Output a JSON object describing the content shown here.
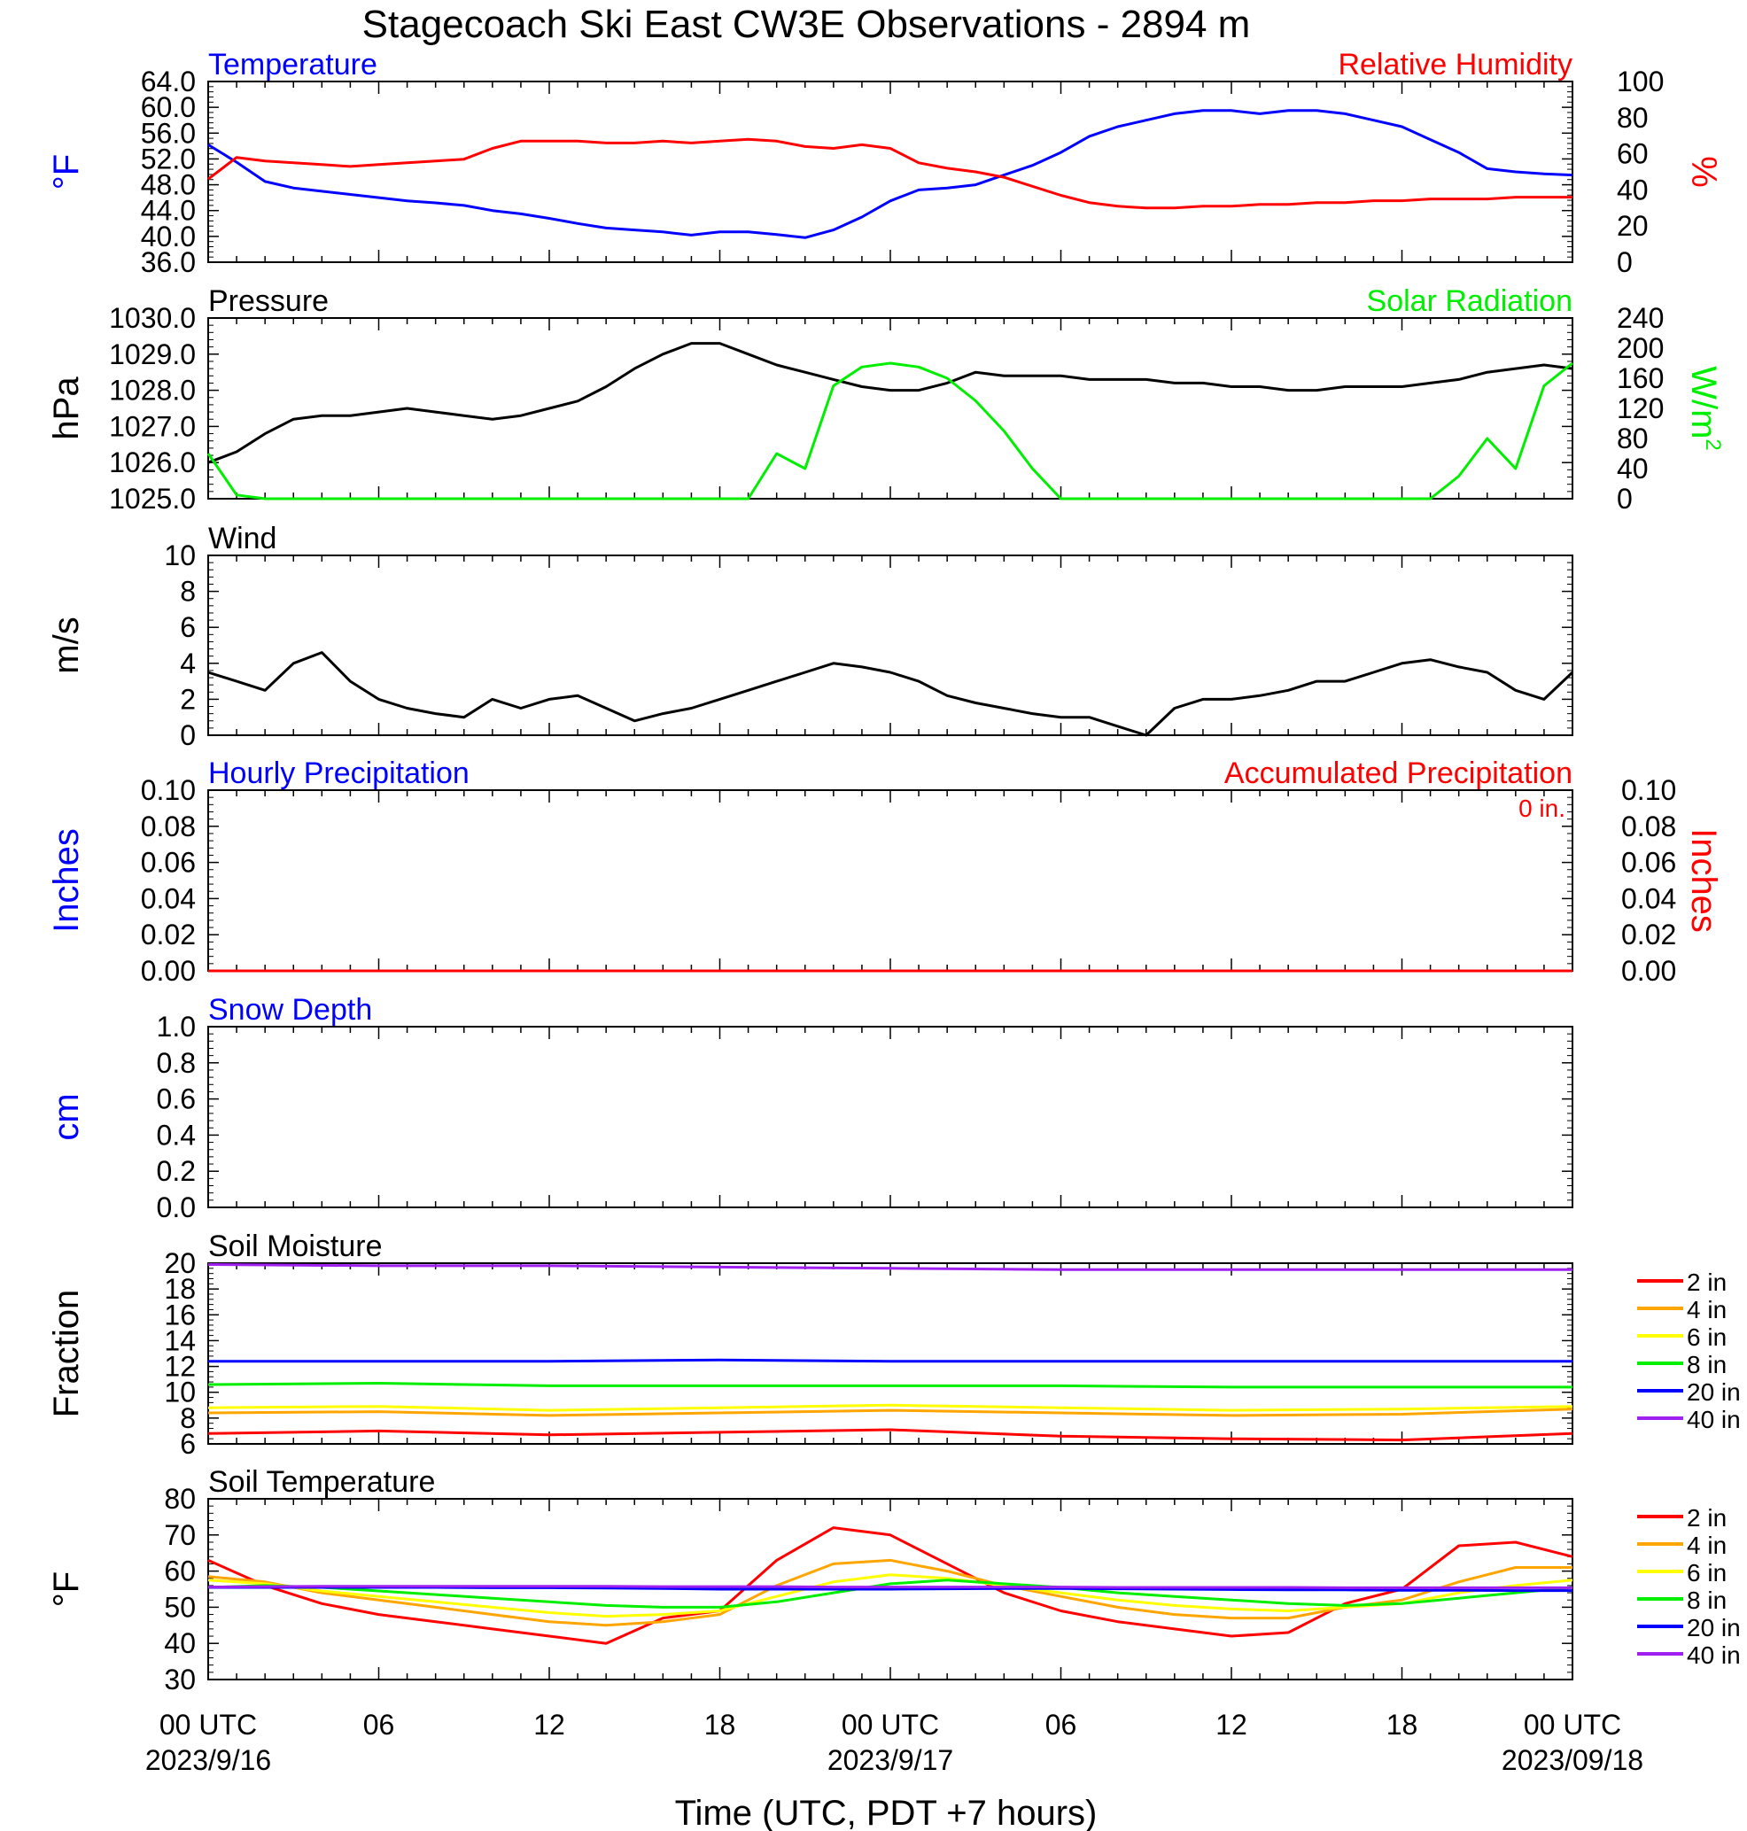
{
  "title": "Stagecoach Ski East CW3E Observations - 2894 m",
  "xaxis": {
    "tick_labels": [
      "00 UTC",
      "06",
      "12",
      "18",
      "00 UTC",
      "06",
      "12",
      "18",
      "00 UTC"
    ],
    "date_labels": [
      "2023/9/16",
      "2023/9/17",
      "2023/09/18"
    ],
    "xlabel": "Time (UTC, PDT +7 hours)"
  },
  "chart_data": [
    {
      "type": "line",
      "title_left": "Temperature",
      "title_right": "Relative Humidity",
      "ylabel": "°F",
      "ylabel_right": "%",
      "ylim": [
        36,
        64
      ],
      "ylim_right": [
        0,
        100
      ],
      "yticks": [
        "64.0",
        "60.0",
        "56.0",
        "52.0",
        "48.0",
        "44.0",
        "40.0",
        "36.0"
      ],
      "yticks_right": [
        "100",
        "80",
        "60",
        "40",
        "20",
        "0"
      ],
      "colors": {
        "Temperature": "#0000ff",
        "Relative Humidity": "#ff0000"
      },
      "x": [
        0,
        1,
        2,
        3,
        4,
        5,
        6,
        7,
        8,
        9,
        10,
        11,
        12,
        13,
        14,
        15,
        16,
        17,
        18,
        19,
        20,
        21,
        22,
        23,
        24,
        25,
        26,
        27,
        28,
        29,
        30,
        31,
        32,
        33,
        34,
        35,
        36,
        37,
        38,
        39,
        40,
        41,
        42,
        43,
        44,
        45,
        46,
        47,
        48
      ],
      "series": [
        {
          "name": "Temperature",
          "values": [
            54.2,
            51.5,
            48.5,
            47.5,
            47,
            46.5,
            46,
            45.5,
            45.2,
            44.8,
            44,
            43.5,
            42.8,
            42,
            41.3,
            41,
            40.7,
            40.2,
            40.7,
            40.7,
            40.3,
            39.8,
            41,
            43,
            45.5,
            47.2,
            47.5,
            48,
            49.5,
            51,
            53,
            55.5,
            57,
            58,
            59,
            59.5,
            59.5,
            59,
            59.5,
            59.5,
            59,
            58,
            57,
            55,
            53,
            50.5,
            50,
            49.7,
            49.5
          ]
        },
        {
          "name": "Relative Humidity",
          "values": [
            46,
            58,
            56,
            55,
            54,
            53,
            54,
            55,
            56,
            57,
            63,
            67,
            67,
            67,
            66,
            66,
            67,
            66,
            67,
            68,
            67,
            64,
            63,
            65,
            63,
            55,
            52,
            50,
            47,
            42,
            37,
            33,
            31,
            30,
            30,
            31,
            31,
            32,
            32,
            33,
            33,
            34,
            34,
            35,
            35,
            35,
            36,
            36,
            36
          ]
        }
      ]
    },
    {
      "type": "line",
      "title_left": "Pressure",
      "title_right": "Solar Radiation",
      "ylabel": "hPa",
      "ylabel_right": "W/m",
      "ylabel_right_sup": "2",
      "ylim": [
        1025,
        1030
      ],
      "ylim_right": [
        0,
        240
      ],
      "yticks": [
        "1030.0",
        "1029.0",
        "1028.0",
        "1027.0",
        "1026.0",
        "1025.0"
      ],
      "yticks_right": [
        "240",
        "200",
        "160",
        "120",
        "80",
        "40",
        "0"
      ],
      "colors": {
        "Pressure": "#000000",
        "Solar Radiation": "#00ee00"
      },
      "x": [
        0,
        1,
        2,
        3,
        4,
        5,
        6,
        7,
        8,
        9,
        10,
        11,
        12,
        13,
        14,
        15,
        16,
        17,
        18,
        19,
        20,
        21,
        22,
        23,
        24,
        25,
        26,
        27,
        28,
        29,
        30,
        31,
        32,
        33,
        34,
        35,
        36,
        37,
        38,
        39,
        40,
        41,
        42,
        43,
        44,
        45,
        46,
        47,
        48
      ],
      "series": [
        {
          "name": "Pressure",
          "values": [
            1026.0,
            1026.3,
            1026.8,
            1027.2,
            1027.3,
            1027.3,
            1027.4,
            1027.5,
            1027.4,
            1027.3,
            1027.2,
            1027.3,
            1027.5,
            1027.7,
            1028.1,
            1028.6,
            1029.0,
            1029.3,
            1029.3,
            1029.0,
            1028.7,
            1028.5,
            1028.3,
            1028.1,
            1028.0,
            1028.0,
            1028.2,
            1028.5,
            1028.4,
            1028.4,
            1028.4,
            1028.3,
            1028.3,
            1028.3,
            1028.2,
            1028.2,
            1028.1,
            1028.1,
            1028.0,
            1028.0,
            1028.1,
            1028.1,
            1028.1,
            1028.2,
            1028.3,
            1028.5,
            1028.6,
            1028.7,
            1028.6
          ]
        },
        {
          "name": "Solar Radiation",
          "values": [
            60,
            5,
            0,
            0,
            0,
            0,
            0,
            0,
            0,
            0,
            0,
            0,
            0,
            0,
            0,
            0,
            0,
            0,
            0,
            0,
            60,
            40,
            150,
            175,
            180,
            175,
            160,
            130,
            90,
            40,
            0,
            0,
            0,
            0,
            0,
            0,
            0,
            0,
            0,
            0,
            0,
            0,
            0,
            0,
            30,
            80,
            40,
            150,
            180
          ]
        }
      ]
    },
    {
      "type": "line",
      "title_left": "Wind",
      "ylabel": "m/s",
      "ylim": [
        0,
        10
      ],
      "yticks": [
        "10",
        "8",
        "6",
        "4",
        "2",
        "0"
      ],
      "colors": {
        "Wind": "#000000",
        "barbs": "#ff0000"
      },
      "x": [
        0,
        1,
        2,
        3,
        4,
        5,
        6,
        7,
        8,
        9,
        10,
        11,
        12,
        13,
        14,
        15,
        16,
        17,
        18,
        19,
        20,
        21,
        22,
        23,
        24,
        25,
        26,
        27,
        28,
        29,
        30,
        31,
        32,
        33,
        34,
        35,
        36,
        37,
        38,
        39,
        40,
        41,
        42,
        43,
        44,
        45,
        46,
        47,
        48
      ],
      "series": [
        {
          "name": "Wind",
          "values": [
            3.5,
            3.0,
            2.5,
            4.0,
            4.6,
            3.0,
            2.0,
            1.5,
            1.2,
            1.0,
            2.0,
            1.5,
            2.0,
            2.2,
            1.5,
            0.8,
            1.2,
            1.5,
            2.0,
            2.5,
            3.0,
            3.5,
            4.0,
            3.8,
            3.5,
            3.0,
            2.2,
            1.8,
            1.5,
            1.2,
            1.0,
            1.0,
            0.5,
            0.0,
            1.5,
            2.0,
            2.0,
            2.2,
            2.5,
            3.0,
            3.0,
            3.5,
            4.0,
            4.2,
            3.8,
            3.5,
            2.5,
            2.0,
            3.5
          ]
        }
      ]
    },
    {
      "type": "line",
      "title_left": "Hourly Precipitation",
      "title_right": "Accumulated Precipitation",
      "annotation": "0 in.",
      "ylabel": "Inches",
      "ylabel_right": "Inches",
      "ylim": [
        0,
        0.1
      ],
      "yticks": [
        "0.10",
        "0.08",
        "0.06",
        "0.04",
        "0.02",
        "0.00"
      ],
      "colors": {
        "Hourly Precipitation": "#0000ff",
        "Accumulated Precipitation": "#ff0000"
      },
      "x": [
        0,
        48
      ],
      "series": [
        {
          "name": "Accumulated Precipitation",
          "values": [
            0,
            0
          ]
        }
      ]
    },
    {
      "type": "line",
      "title_left": "Snow Depth",
      "ylabel": "cm",
      "ylim": [
        0,
        1
      ],
      "yticks": [
        "1.0",
        "0.8",
        "0.6",
        "0.4",
        "0.2",
        "0.0"
      ],
      "colors": {
        "Snow Depth": "#0000ff"
      },
      "series": []
    },
    {
      "type": "line",
      "title_left": "Soil Moisture",
      "ylabel": "Fraction",
      "ylim": [
        6,
        20
      ],
      "yticks": [
        "20",
        "18",
        "16",
        "14",
        "12",
        "10",
        "8",
        "6"
      ],
      "x": [
        0,
        6,
        12,
        18,
        24,
        30,
        36,
        42,
        48
      ],
      "series": [
        {
          "name": "2 in",
          "color": "#ff0000",
          "values": [
            6.8,
            7.0,
            6.7,
            6.9,
            7.1,
            6.6,
            6.4,
            6.3,
            6.8
          ]
        },
        {
          "name": "4 in",
          "color": "#ffa500",
          "values": [
            8.4,
            8.5,
            8.2,
            8.4,
            8.6,
            8.4,
            8.2,
            8.3,
            8.7
          ]
        },
        {
          "name": "6 in",
          "color": "#ffff00",
          "values": [
            8.8,
            8.9,
            8.6,
            8.8,
            9.0,
            8.8,
            8.6,
            8.7,
            8.9
          ]
        },
        {
          "name": "8 in",
          "color": "#00ee00",
          "values": [
            10.6,
            10.7,
            10.5,
            10.5,
            10.5,
            10.5,
            10.4,
            10.4,
            10.4
          ]
        },
        {
          "name": "20 in",
          "color": "#0000ff",
          "values": [
            12.4,
            12.4,
            12.4,
            12.5,
            12.4,
            12.4,
            12.4,
            12.4,
            12.4
          ]
        },
        {
          "name": "40 in",
          "color": "#a020f0",
          "values": [
            19.9,
            19.8,
            19.8,
            19.7,
            19.6,
            19.5,
            19.5,
            19.5,
            19.5
          ]
        }
      ]
    },
    {
      "type": "line",
      "title_left": "Soil Temperature",
      "ylabel": "°F",
      "ylim": [
        30,
        80
      ],
      "yticks": [
        "80",
        "70",
        "60",
        "50",
        "40",
        "30"
      ],
      "x": [
        0,
        2,
        4,
        6,
        8,
        10,
        12,
        14,
        16,
        18,
        20,
        22,
        24,
        26,
        28,
        30,
        32,
        34,
        36,
        38,
        40,
        42,
        44,
        46,
        48
      ],
      "series": [
        {
          "name": "2 in",
          "color": "#ff0000",
          "values": [
            63,
            56,
            51,
            48,
            46,
            44,
            42,
            40,
            47,
            49,
            63,
            72,
            70,
            62,
            54,
            49,
            46,
            44,
            42,
            43,
            51,
            55,
            67,
            68,
            64
          ]
        },
        {
          "name": "4 in",
          "color": "#ffa500",
          "values": [
            58.5,
            57,
            54,
            52,
            50,
            48,
            46,
            45,
            46,
            48,
            56,
            62,
            63,
            60,
            56,
            53,
            50,
            48,
            47,
            47,
            50,
            52,
            57,
            61,
            61
          ]
        },
        {
          "name": "6 in",
          "color": "#ffff00",
          "values": [
            57.5,
            56.5,
            54.5,
            53,
            51.5,
            50,
            48.5,
            47.5,
            48,
            49,
            53,
            57,
            59,
            58,
            56,
            54,
            52,
            50.5,
            49.5,
            49,
            50,
            51,
            54,
            56,
            57.5
          ]
        },
        {
          "name": "8 in",
          "color": "#00ee00",
          "values": [
            55.5,
            56,
            55.5,
            54.5,
            53.5,
            52.5,
            51.5,
            50.5,
            50,
            50,
            51.5,
            54,
            56.5,
            57.5,
            56.5,
            55.5,
            54,
            53,
            52,
            51,
            50.5,
            51,
            52.5,
            54,
            55.5
          ]
        },
        {
          "name": "20 in",
          "color": "#0000ff",
          "values": [
            55.5,
            55.5,
            55.5,
            55.5,
            55.5,
            55.4,
            55.4,
            55.3,
            55.2,
            55.0,
            55.0,
            55.0,
            55.0,
            55.1,
            55.2,
            55.2,
            55.1,
            55.0,
            54.9,
            54.8,
            54.8,
            54.7,
            54.7,
            54.6,
            54.6
          ]
        },
        {
          "name": "40 in",
          "color": "#a020f0",
          "values": [
            55.6,
            55.7,
            55.8,
            55.8,
            55.8,
            55.8,
            55.8,
            55.8,
            55.7,
            55.7,
            55.7,
            55.6,
            55.6,
            55.6,
            55.6,
            55.6,
            55.5,
            55.5,
            55.5,
            55.5,
            55.4,
            55.4,
            55.4,
            55.4,
            55.4
          ]
        }
      ]
    }
  ]
}
